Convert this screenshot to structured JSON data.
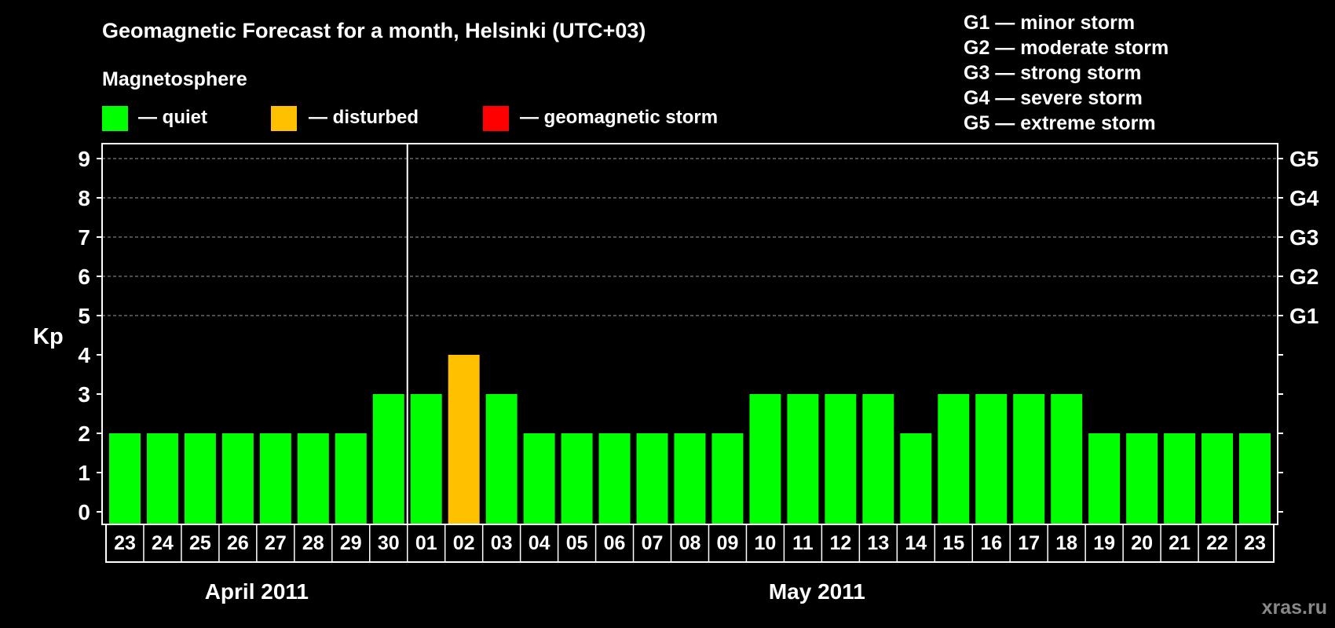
{
  "title": "Geomagnetic Forecast for a month, Helsinki (UTC+03)",
  "watermark": "xras.ru",
  "legend": {
    "heading": "Magnetosphere",
    "items": [
      {
        "label": "— quiet",
        "color": "#00ff00"
      },
      {
        "label": "— disturbed",
        "color": "#ffc000"
      },
      {
        "label": "— geomagnetic storm",
        "color": "#ff0000"
      }
    ]
  },
  "storm_scale": [
    "G1 — minor storm",
    "G2 — moderate storm",
    "G3 — strong storm",
    "G4 — severe storm",
    "G5 — extreme storm"
  ],
  "chart_data": {
    "type": "bar",
    "ylabel": "Kp",
    "ylim": [
      0,
      9
    ],
    "y_ticks": [
      "0",
      "1",
      "2",
      "3",
      "4",
      "5",
      "6",
      "7",
      "8",
      "9"
    ],
    "right_ticks": [
      {
        "kp": 5,
        "label": "G1"
      },
      {
        "kp": 6,
        "label": "G2"
      },
      {
        "kp": 7,
        "label": "G3"
      },
      {
        "kp": 8,
        "label": "G4"
      },
      {
        "kp": 9,
        "label": "G5"
      }
    ],
    "grid": "dashed lines at Kp 5–9",
    "categories": [
      "23",
      "24",
      "25",
      "26",
      "27",
      "28",
      "29",
      "30",
      "01",
      "02",
      "03",
      "04",
      "05",
      "06",
      "07",
      "08",
      "09",
      "10",
      "11",
      "12",
      "13",
      "14",
      "15",
      "16",
      "17",
      "18",
      "19",
      "20",
      "21",
      "22",
      "23"
    ],
    "values": [
      2,
      2,
      2,
      2,
      2,
      2,
      2,
      3,
      3,
      4,
      3,
      2,
      2,
      2,
      2,
      2,
      2,
      3,
      3,
      3,
      3,
      2,
      3,
      3,
      3,
      3,
      2,
      2,
      2,
      2,
      2
    ],
    "months": [
      {
        "label": "April 2011",
        "first_index": 0,
        "last_index": 7
      },
      {
        "label": "May 2011",
        "first_index": 8,
        "last_index": 30
      }
    ],
    "color_rule": {
      "quiet_max": 3,
      "disturbed_max": 4
    }
  }
}
